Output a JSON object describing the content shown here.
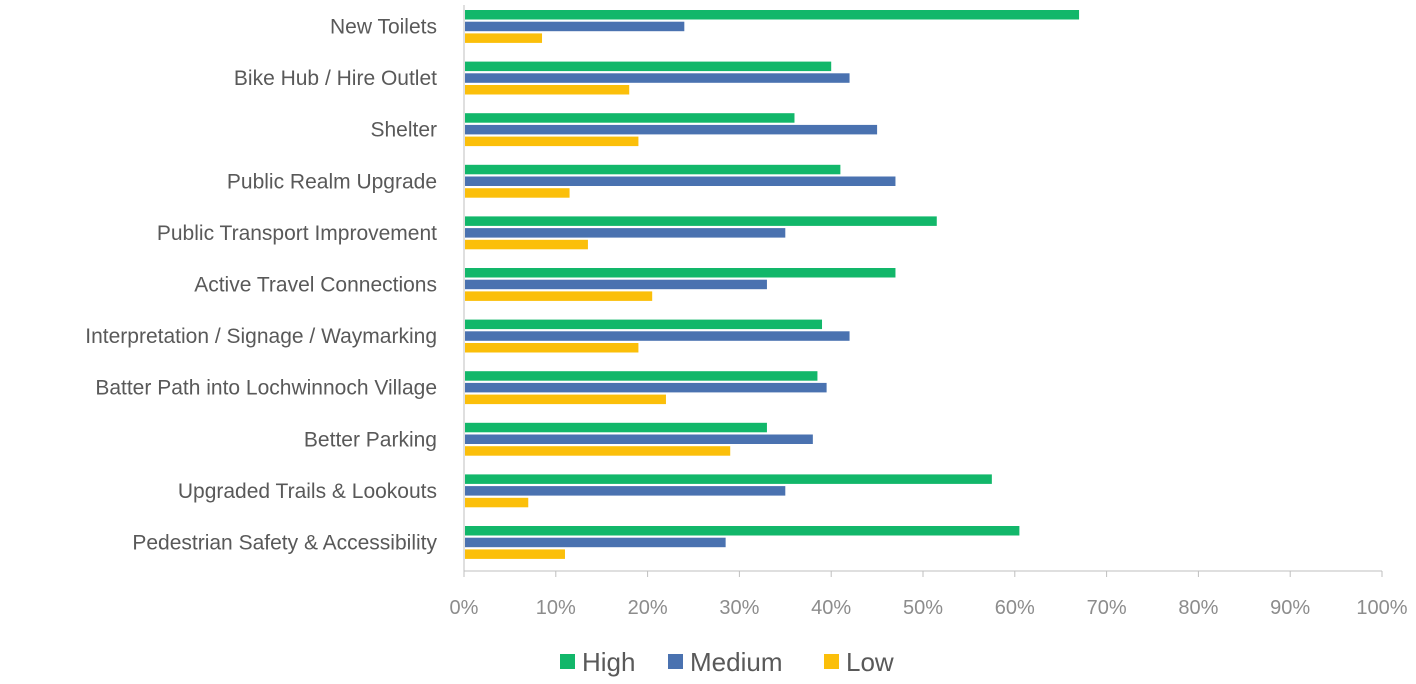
{
  "chart_data": {
    "type": "bar",
    "orientation": "horizontal",
    "categories": [
      "New Toilets",
      "Bike Hub / Hire Outlet",
      "Shelter",
      "Public Realm Upgrade",
      "Public Transport Improvement",
      "Active Travel Connections",
      "Interpretation / Signage  / Waymarking",
      "Batter Path into Lochwinnoch Village",
      "Better Parking",
      "Upgraded Trails & Lookouts",
      "Pedestrian Safety & Accessibility"
    ],
    "series": [
      {
        "name": "High",
        "color": "#12b76a",
        "values": [
          67,
          40,
          36,
          41,
          51.5,
          47,
          39,
          38.5,
          33,
          57.5,
          60.5
        ]
      },
      {
        "name": "Medium",
        "color": "#4a72b0",
        "values": [
          24,
          42,
          45,
          47,
          35,
          33,
          42,
          39.5,
          38,
          35,
          28.5
        ]
      },
      {
        "name": "Low",
        "color": "#fbbf0a",
        "values": [
          8.5,
          18,
          19,
          11.5,
          13.5,
          20.5,
          19,
          22,
          29,
          7,
          11
        ]
      }
    ],
    "xlim": [
      0,
      100
    ],
    "x_ticks": [
      "0%",
      "10%",
      "20%",
      "30%",
      "40%",
      "50%",
      "60%",
      "70%",
      "80%",
      "90%",
      "100%"
    ],
    "x_tick_values": [
      0,
      10,
      20,
      30,
      40,
      50,
      60,
      70,
      80,
      90,
      100
    ],
    "grid": false,
    "legend_position": "bottom-center",
    "title": "",
    "xlabel": "",
    "ylabel": ""
  }
}
